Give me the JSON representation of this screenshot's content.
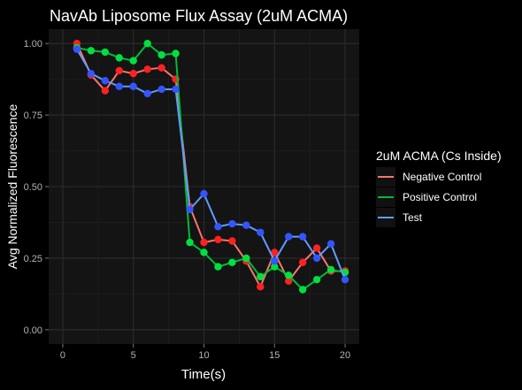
{
  "chart_data": {
    "type": "line",
    "title": "NavAb Liposome Flux Assay (2uM ACMA)",
    "xlabel": "Time(s)",
    "ylabel": "Avg Normalized Fluorescence",
    "xlim": [
      -1,
      21
    ],
    "ylim": [
      -0.05,
      1.05
    ],
    "x_ticks": [
      0,
      5,
      10,
      15,
      20
    ],
    "x_tick_labels": [
      "0",
      "5",
      "10",
      "15",
      "20"
    ],
    "y_ticks": [
      0.0,
      0.25,
      0.5,
      0.75,
      1.0
    ],
    "y_tick_labels": [
      "0.00",
      "0.25",
      "0.50",
      "0.75",
      "1.00"
    ],
    "grid": true,
    "legend": {
      "title": "2uM ACMA (Cs Inside)",
      "position": "right"
    },
    "x": [
      1,
      2,
      3,
      4,
      5,
      6,
      7,
      8,
      9,
      10,
      11,
      12,
      13,
      14,
      15,
      16,
      17,
      18,
      19,
      20
    ],
    "series": [
      {
        "name": "Negative Control",
        "color": "#F8766D",
        "point_color": "#FF2020",
        "values": [
          1.0,
          0.89,
          0.835,
          0.905,
          0.895,
          0.91,
          0.915,
          0.875,
          0.43,
          0.305,
          0.315,
          0.31,
          0.24,
          0.15,
          0.27,
          0.17,
          0.235,
          0.285,
          0.205,
          0.205
        ]
      },
      {
        "name": "Positive Control",
        "color": "#00BA38",
        "point_color": "#00E040",
        "values": [
          0.985,
          0.975,
          0.97,
          0.95,
          0.94,
          1.0,
          0.96,
          0.965,
          0.305,
          0.27,
          0.22,
          0.235,
          0.25,
          0.185,
          0.22,
          0.19,
          0.14,
          0.175,
          0.21,
          0.2
        ]
      },
      {
        "name": "Test",
        "color": "#619CFF",
        "point_color": "#3355FF",
        "values": [
          0.98,
          0.895,
          0.87,
          0.85,
          0.85,
          0.825,
          0.84,
          0.84,
          0.42,
          0.475,
          0.36,
          0.37,
          0.365,
          0.34,
          0.24,
          0.325,
          0.325,
          0.25,
          0.3,
          0.175
        ]
      }
    ]
  }
}
